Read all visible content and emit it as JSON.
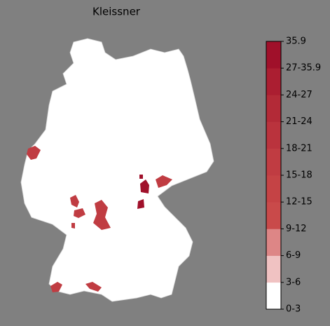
{
  "title": "Kleissner",
  "legend": {
    "labels": [
      "0-3",
      "3-6",
      "6-9",
      "9-12",
      "12-15",
      "15-18",
      "18-21",
      "21-24",
      "24-27",
      "27-35.9",
      "35.9"
    ],
    "colors": [
      "#ffffff",
      "#f0c2c2",
      "#dd8686",
      "#c94a4a",
      "#c54345",
      "#c03c42",
      "#ba333d",
      "#b32a37",
      "#ab1e31",
      "#a0102a"
    ]
  }
}
